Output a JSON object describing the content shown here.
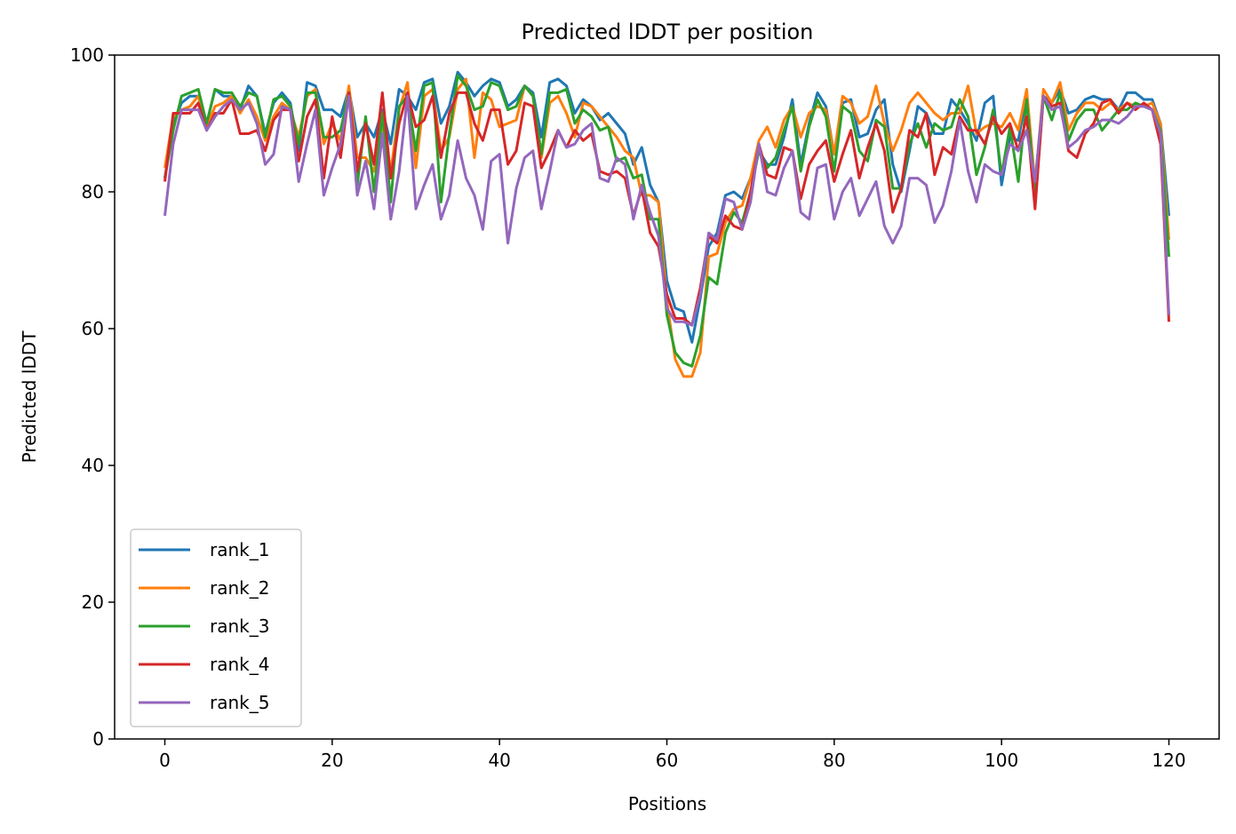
{
  "chart_data": {
    "type": "line",
    "title": "Predicted lDDT per position",
    "xlabel": "Positions",
    "ylabel": "Predicted lDDT",
    "xlim": [
      -6,
      126
    ],
    "ylim": [
      0,
      100
    ],
    "xticks": [
      0,
      20,
      40,
      60,
      80,
      100,
      120
    ],
    "yticks": [
      0,
      20,
      40,
      60,
      80,
      100
    ],
    "grid": false,
    "legend_position": "lower-left",
    "x_start": 0,
    "x_end": 120,
    "series": [
      {
        "name": "rank_1",
        "color": "#1f77b4",
        "values": [
          82.0,
          90.0,
          93.0,
          94.0,
          94.0,
          90.0,
          95.0,
          94.0,
          94.0,
          92.0,
          95.5,
          94.0,
          88.5,
          93.0,
          94.5,
          93.0,
          86.0,
          96.0,
          95.5,
          92.0,
          92.0,
          91.0,
          95.0,
          88.0,
          90.0,
          88.0,
          92.0,
          87.0,
          95.0,
          94.0,
          92.0,
          96.0,
          96.5,
          90.0,
          92.5,
          97.5,
          96.0,
          94.0,
          95.5,
          96.5,
          96.0,
          92.5,
          93.5,
          95.5,
          94.5,
          88.0,
          96.0,
          96.5,
          95.5,
          91.5,
          93.5,
          92.5,
          90.5,
          91.5,
          90.0,
          88.5,
          84.0,
          86.5,
          81.0,
          78.5,
          67.0,
          63.0,
          62.5,
          58.0,
          64.5,
          72.0,
          74.0,
          79.5,
          80.0,
          79.0,
          82.0,
          86.0,
          84.0,
          84.0,
          88.0,
          93.5,
          84.0,
          90.0,
          94.5,
          92.5,
          85.5,
          93.0,
          93.5,
          88.0,
          88.5,
          92.0,
          93.5,
          84.0,
          80.0,
          86.0,
          92.5,
          91.5,
          88.5,
          88.5,
          93.5,
          92.0,
          90.0,
          87.5,
          93.0,
          94.0,
          81.0,
          88.0,
          87.5,
          94.5,
          78.0,
          94.0,
          93.0,
          95.0,
          91.5,
          92.0,
          93.5,
          94.0,
          93.5,
          93.5,
          92.0,
          94.5,
          94.5,
          93.5,
          93.5,
          90.0,
          76.5
        ]
      },
      {
        "name": "rank_2",
        "color": "#ff7f0e",
        "values": [
          83.5,
          91.0,
          92.0,
          92.5,
          94.0,
          89.5,
          92.5,
          93.0,
          94.0,
          91.5,
          93.5,
          91.0,
          87.5,
          91.0,
          93.0,
          92.0,
          88.0,
          94.0,
          95.0,
          87.0,
          90.0,
          87.5,
          95.5,
          85.0,
          85.0,
          83.0,
          90.0,
          83.0,
          92.0,
          96.0,
          83.5,
          94.0,
          95.0,
          86.0,
          88.0,
          95.0,
          96.5,
          85.0,
          94.5,
          93.5,
          89.5,
          90.0,
          90.5,
          95.5,
          94.0,
          85.0,
          93.0,
          94.0,
          91.5,
          88.0,
          93.0,
          92.5,
          91.0,
          89.5,
          88.0,
          86.0,
          85.0,
          79.5,
          79.5,
          78.5,
          64.0,
          55.5,
          53.0,
          53.0,
          56.5,
          70.5,
          71.0,
          75.5,
          77.5,
          78.0,
          82.0,
          87.5,
          89.5,
          86.5,
          90.5,
          92.5,
          88.0,
          91.5,
          92.5,
          92.0,
          85.5,
          94.0,
          93.0,
          90.0,
          91.0,
          95.5,
          90.0,
          86.0,
          89.0,
          93.0,
          94.5,
          93.0,
          91.5,
          90.5,
          91.5,
          91.5,
          95.5,
          88.5,
          89.5,
          90.0,
          89.5,
          91.5,
          89.0,
          95.0,
          81.0,
          95.0,
          93.0,
          96.0,
          89.0,
          91.5,
          93.0,
          93.0,
          92.0,
          93.0,
          92.0,
          93.0,
          92.5,
          92.5,
          93.0,
          90.0,
          73.0
        ]
      },
      {
        "name": "rank_3",
        "color": "#2ca02c",
        "values": [
          82.0,
          89.0,
          94.0,
          94.5,
          95.0,
          90.0,
          95.0,
          94.5,
          94.5,
          92.5,
          94.5,
          94.0,
          88.0,
          93.5,
          94.0,
          92.5,
          87.0,
          94.5,
          94.5,
          88.0,
          88.0,
          89.0,
          94.5,
          81.0,
          91.0,
          80.0,
          91.5,
          78.5,
          92.5,
          94.0,
          86.0,
          95.5,
          96.0,
          78.5,
          88.5,
          97.0,
          95.5,
          92.0,
          92.5,
          96.0,
          95.5,
          92.0,
          92.5,
          95.5,
          94.0,
          85.5,
          94.5,
          94.5,
          95.0,
          90.0,
          92.0,
          91.0,
          89.0,
          89.5,
          84.5,
          85.0,
          82.0,
          82.5,
          76.0,
          76.0,
          62.0,
          56.5,
          55.0,
          54.5,
          59.0,
          67.5,
          66.5,
          74.0,
          77.0,
          75.5,
          80.0,
          86.0,
          83.5,
          85.0,
          89.0,
          92.5,
          83.0,
          89.5,
          93.5,
          91.0,
          83.0,
          92.5,
          91.5,
          86.0,
          84.5,
          90.5,
          89.5,
          80.5,
          80.5,
          87.0,
          90.0,
          86.5,
          90.0,
          89.0,
          89.5,
          93.5,
          91.0,
          82.5,
          86.5,
          92.0,
          82.5,
          89.5,
          81.5,
          93.5,
          80.0,
          94.0,
          90.5,
          94.5,
          87.5,
          90.5,
          92.0,
          92.0,
          89.0,
          90.5,
          92.0,
          92.0,
          93.0,
          92.5,
          92.0,
          89.0,
          70.5
        ]
      },
      {
        "name": "rank_4",
        "color": "#d62728",
        "values": [
          81.5,
          91.5,
          91.5,
          91.5,
          93.0,
          89.0,
          91.5,
          91.5,
          93.5,
          88.5,
          88.5,
          89.0,
          86.0,
          90.5,
          92.0,
          92.0,
          84.5,
          91.0,
          93.5,
          82.0,
          91.0,
          85.0,
          94.5,
          83.0,
          90.0,
          84.0,
          94.5,
          82.0,
          90.0,
          94.5,
          89.5,
          90.5,
          94.0,
          85.0,
          91.5,
          94.5,
          94.5,
          90.0,
          87.5,
          92.0,
          92.0,
          84.0,
          86.0,
          93.0,
          92.5,
          83.5,
          86.0,
          89.0,
          86.5,
          89.0,
          87.5,
          88.5,
          83.0,
          82.5,
          83.0,
          82.0,
          76.5,
          80.5,
          74.0,
          72.0,
          65.0,
          61.5,
          61.5,
          60.5,
          66.0,
          73.5,
          72.5,
          76.5,
          75.0,
          74.5,
          80.0,
          87.0,
          82.5,
          82.0,
          86.5,
          86.0,
          79.0,
          84.0,
          86.0,
          87.5,
          81.5,
          85.5,
          89.0,
          82.0,
          86.5,
          90.0,
          86.0,
          77.0,
          80.5,
          89.0,
          88.0,
          91.5,
          82.5,
          86.5,
          85.5,
          91.0,
          89.0,
          89.0,
          87.0,
          91.0,
          88.5,
          90.0,
          86.0,
          91.0,
          77.5,
          94.0,
          92.5,
          93.0,
          86.0,
          85.0,
          88.5,
          90.0,
          93.0,
          93.5,
          91.5,
          93.0,
          92.0,
          93.0,
          92.0,
          87.0,
          61.0
        ]
      },
      {
        "name": "rank_5",
        "color": "#9467bd",
        "values": [
          76.5,
          87.0,
          92.0,
          92.0,
          92.0,
          89.0,
          91.0,
          92.5,
          93.5,
          92.0,
          93.0,
          90.0,
          84.0,
          85.5,
          92.5,
          92.0,
          81.5,
          87.0,
          92.0,
          79.5,
          83.5,
          87.0,
          94.0,
          79.5,
          84.5,
          77.5,
          88.5,
          76.0,
          83.0,
          94.0,
          77.5,
          81.0,
          84.0,
          76.0,
          79.5,
          87.5,
          82.0,
          79.5,
          74.5,
          84.5,
          85.5,
          72.5,
          80.5,
          85.0,
          86.0,
          77.5,
          83.0,
          89.0,
          86.5,
          87.0,
          89.0,
          90.0,
          82.0,
          81.5,
          85.0,
          84.0,
          76.0,
          81.0,
          77.0,
          73.5,
          63.0,
          61.0,
          61.0,
          60.5,
          65.0,
          74.0,
          73.0,
          79.0,
          78.5,
          74.5,
          78.5,
          87.0,
          80.0,
          79.5,
          83.5,
          86.0,
          77.0,
          76.0,
          83.5,
          84.0,
          76.0,
          80.0,
          82.0,
          76.5,
          79.0,
          81.5,
          75.0,
          72.5,
          75.0,
          82.0,
          82.0,
          81.0,
          75.5,
          78.0,
          83.0,
          90.5,
          83.0,
          78.5,
          84.0,
          83.0,
          82.5,
          87.0,
          86.0,
          89.0,
          81.5,
          94.0,
          92.0,
          92.5,
          86.5,
          87.5,
          89.0,
          89.5,
          90.5,
          90.5,
          90.0,
          91.0,
          92.5,
          92.5,
          92.0,
          88.5,
          62.0
        ]
      }
    ]
  }
}
